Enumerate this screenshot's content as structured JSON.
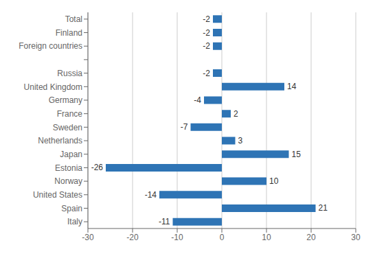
{
  "chart_data": {
    "type": "bar",
    "orientation": "horizontal",
    "categories": [
      "Italy",
      "Spain",
      "United States",
      "Norway",
      "Estonia",
      "Japan",
      "Netherlands",
      "Sweden",
      "France",
      "Germany",
      "United Kingdom",
      "Russia",
      null,
      "Foreign countries",
      "Finland",
      "Total"
    ],
    "values": [
      -11,
      21,
      -14,
      10,
      -26,
      15,
      3,
      -7,
      2,
      -4,
      14,
      -2,
      null,
      -2,
      -2,
      -2
    ],
    "color": "#2E74B5",
    "xlim": [
      -30,
      30
    ],
    "xticks": [
      -30,
      -20,
      -10,
      0,
      10,
      20,
      30
    ],
    "grid": true,
    "data_labels": true
  }
}
